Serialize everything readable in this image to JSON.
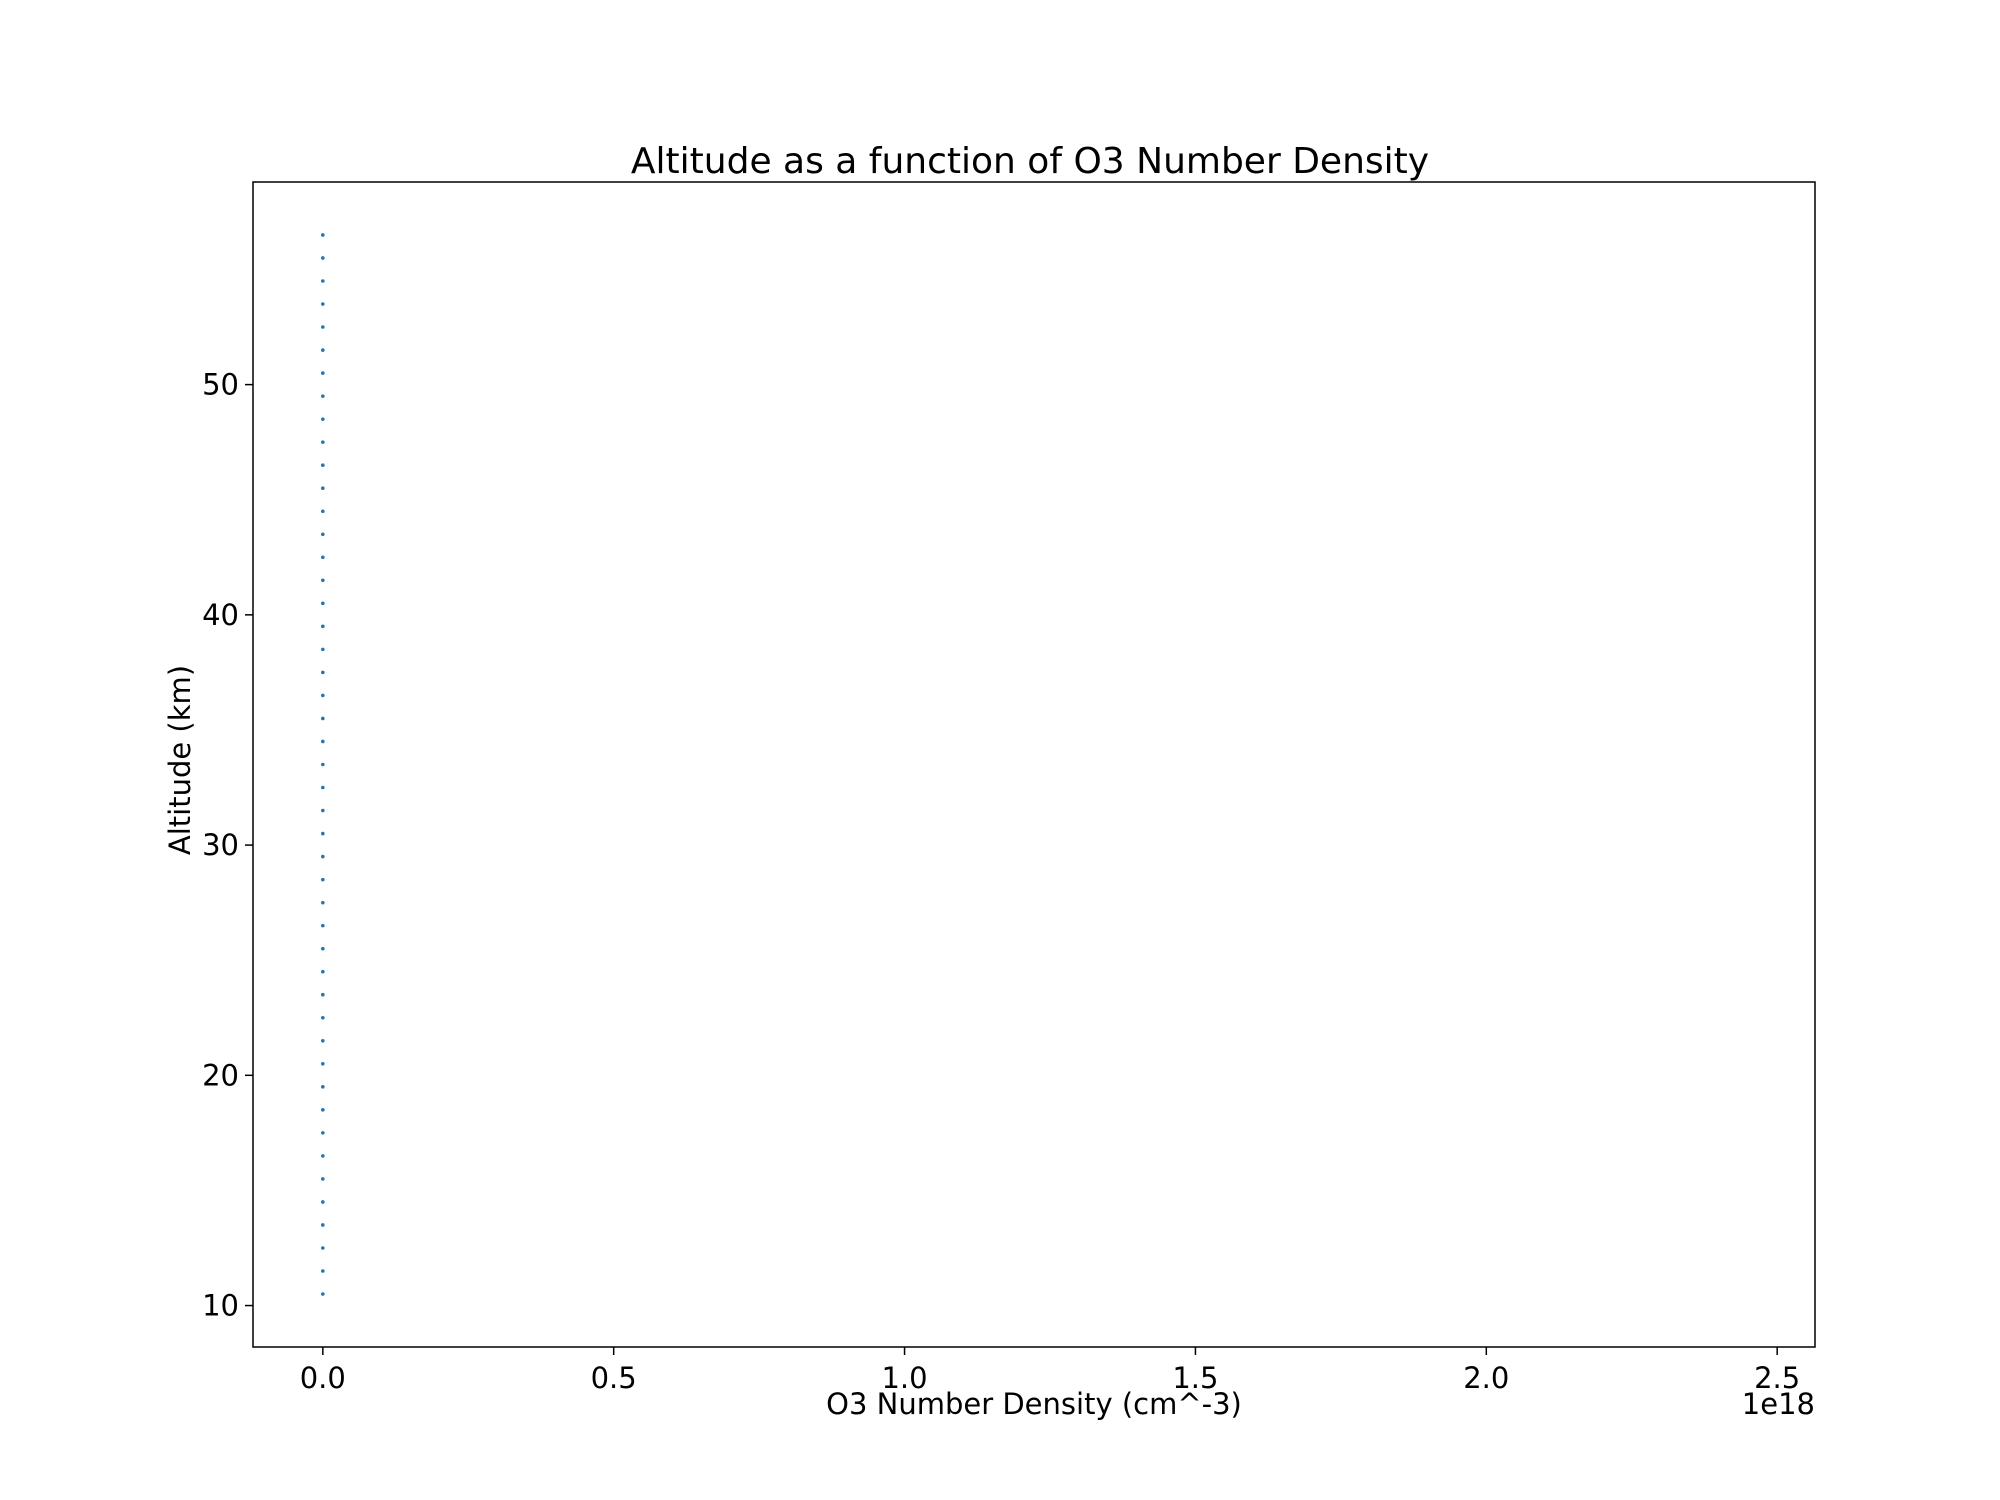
{
  "chart_data": {
    "type": "scatter",
    "title": "Altitude as a function of O3 Number Density",
    "xlabel": "O3 Number Density (cm^-3)",
    "ylabel": "Altitude (km)",
    "x_offset_label": "1e18",
    "x_scale": 1e+18,
    "xlim": [
      -0.12,
      2.565
    ],
    "ylim": [
      8.2,
      58.8
    ],
    "x_ticks": [
      0.0,
      0.5,
      1.0,
      1.5,
      2.0,
      2.5
    ],
    "x_tick_labels": [
      "0.0",
      "0.5",
      "1.0",
      "1.5",
      "2.0",
      "2.5"
    ],
    "y_ticks": [
      10,
      20,
      30,
      40,
      50
    ],
    "y_tick_labels": [
      "10",
      "20",
      "30",
      "40",
      "50"
    ],
    "grid": false,
    "series": [
      {
        "color": "#1f77b4",
        "marker": "point",
        "x": [
          0,
          0,
          0,
          0,
          0,
          0,
          0,
          0,
          0,
          0,
          0,
          0,
          0,
          0,
          0,
          0,
          0,
          0,
          0,
          0,
          0,
          0,
          0,
          0,
          0,
          0,
          0,
          0,
          0,
          0,
          0,
          0,
          0,
          0,
          0,
          0,
          0,
          0,
          0,
          0,
          0,
          0,
          0,
          0,
          0,
          0,
          0
        ],
        "y": [
          10.5,
          11.5,
          12.5,
          13.5,
          14.5,
          15.5,
          16.5,
          17.5,
          18.5,
          19.5,
          20.5,
          21.5,
          22.5,
          23.5,
          24.5,
          25.5,
          26.5,
          27.5,
          28.5,
          29.5,
          30.5,
          31.5,
          32.5,
          33.5,
          34.5,
          35.5,
          36.5,
          37.5,
          38.5,
          39.5,
          40.5,
          41.5,
          42.5,
          43.5,
          44.5,
          45.5,
          46.5,
          47.5,
          48.5,
          49.5,
          50.5,
          51.5,
          52.5,
          53.5,
          54.5,
          55.5,
          56.5
        ]
      }
    ]
  }
}
